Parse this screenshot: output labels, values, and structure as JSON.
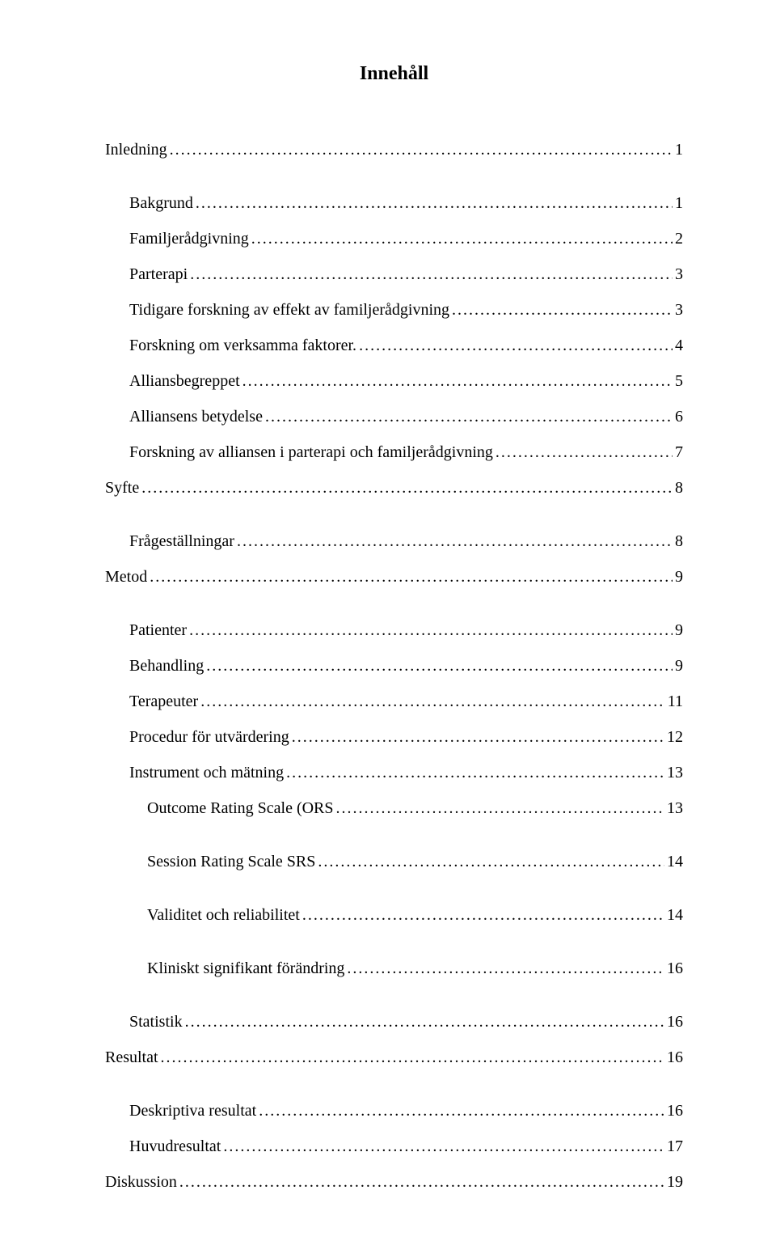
{
  "title": "Innehåll",
  "entries": [
    {
      "label": "Inledning",
      "page": "1",
      "indent": 0,
      "gap": false
    },
    {
      "label": "Bakgrund",
      "page": "1",
      "indent": 1,
      "gap": true
    },
    {
      "label": "Familjerådgivning",
      "page": "2",
      "indent": 1,
      "gap": false
    },
    {
      "label": "Parterapi",
      "page": "3",
      "indent": 1,
      "gap": false
    },
    {
      "label": "Tidigare forskning av effekt av familjerådgivning",
      "page": "3",
      "indent": 1,
      "gap": false
    },
    {
      "label": "Forskning om verksamma faktorer.",
      "page": "4",
      "indent": 1,
      "gap": false
    },
    {
      "label": "Alliansbegreppet",
      "page": "5",
      "indent": 1,
      "gap": false
    },
    {
      "label": "Alliansens betydelse",
      "page": "6",
      "indent": 1,
      "gap": false
    },
    {
      "label": "Forskning av alliansen i parterapi och familjerådgivning",
      "page": "7",
      "indent": 1,
      "gap": false
    },
    {
      "label": "Syfte",
      "page": "8",
      "indent": 0,
      "gap": false
    },
    {
      "label": "Frågeställningar",
      "page": "8",
      "indent": 1,
      "gap": true
    },
    {
      "label": "Metod",
      "page": "9",
      "indent": 0,
      "gap": false
    },
    {
      "label": "Patienter",
      "page": "9",
      "indent": 1,
      "gap": true
    },
    {
      "label": "Behandling",
      "page": "9",
      "indent": 1,
      "gap": false
    },
    {
      "label": "Terapeuter",
      "page": "11",
      "indent": 1,
      "gap": false
    },
    {
      "label": "Procedur för utvärdering",
      "page": "12",
      "indent": 1,
      "gap": false
    },
    {
      "label": "Instrument och mätning",
      "page": "13",
      "indent": 1,
      "gap": false
    },
    {
      "label": "Outcome Rating Scale (ORS",
      "page": "13",
      "indent": 2,
      "gap": false
    },
    {
      "label": "Session Rating Scale SRS",
      "page": "14",
      "indent": 2,
      "gap": true
    },
    {
      "label": "Validitet och reliabilitet",
      "page": "14",
      "indent": 2,
      "gap": true
    },
    {
      "label": "Kliniskt signifikant förändring",
      "page": "16",
      "indent": 2,
      "gap": true
    },
    {
      "label": "Statistik",
      "page": "16",
      "indent": 1,
      "gap": true
    },
    {
      "label": "Resultat",
      "page": "16",
      "indent": 0,
      "gap": false
    },
    {
      "label": "Deskriptiva resultat",
      "page": "16",
      "indent": 1,
      "gap": true
    },
    {
      "label": "Huvudresultat",
      "page": "17",
      "indent": 1,
      "gap": false
    },
    {
      "label": "Diskussion",
      "page": "19",
      "indent": 0,
      "gap": false
    }
  ]
}
